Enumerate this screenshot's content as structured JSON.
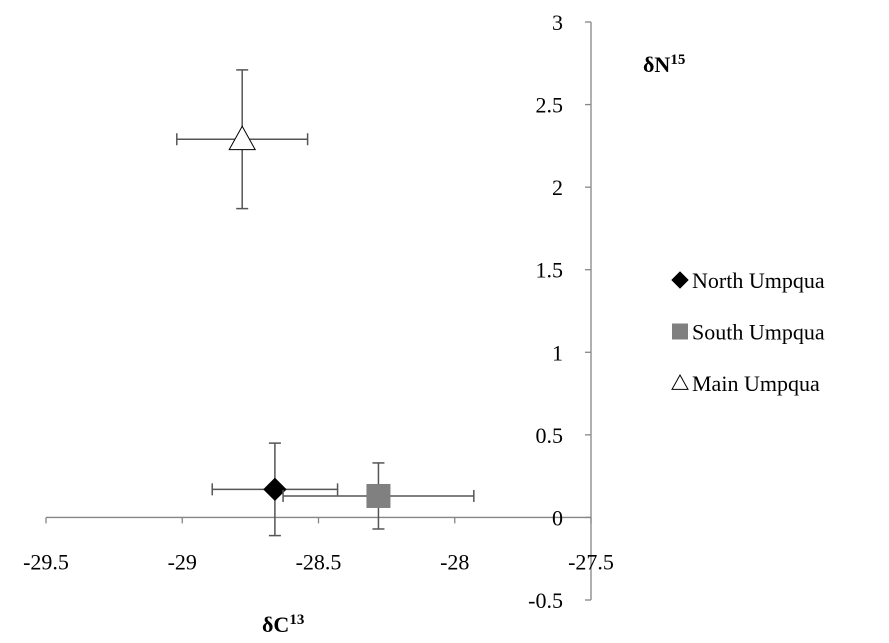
{
  "chart_data": {
    "type": "scatter",
    "x_label": {
      "text": "δC",
      "superscript": "13"
    },
    "y_label": {
      "text": "δN",
      "superscript": "15"
    },
    "xlim": [
      -29.5,
      -27.5
    ],
    "xticks": [
      -29.5,
      -29,
      -28.5,
      -28,
      -27.5
    ],
    "ylim": [
      -0.5,
      3
    ],
    "yticks": [
      -0.5,
      0,
      0.5,
      1,
      1.5,
      2,
      2.5,
      3
    ],
    "grid": false,
    "legend": "right",
    "series": [
      {
        "name": "North Umpqua",
        "marker": "diamond",
        "color": "#000000",
        "x": [
          -28.66
        ],
        "y": [
          0.17
        ],
        "xerr": [
          0.23
        ],
        "yerr": [
          0.28
        ]
      },
      {
        "name": "South Umpqua",
        "marker": "square",
        "color": "#808080",
        "x": [
          -28.28
        ],
        "y": [
          0.13
        ],
        "xerr": [
          0.35
        ],
        "yerr": [
          0.2
        ]
      },
      {
        "name": "Main Umpqua",
        "marker": "triangle",
        "color": "#ffffff",
        "x": [
          -28.78
        ],
        "y": [
          2.29
        ],
        "xerr": [
          0.24
        ],
        "yerr": [
          0.42
        ]
      }
    ]
  }
}
